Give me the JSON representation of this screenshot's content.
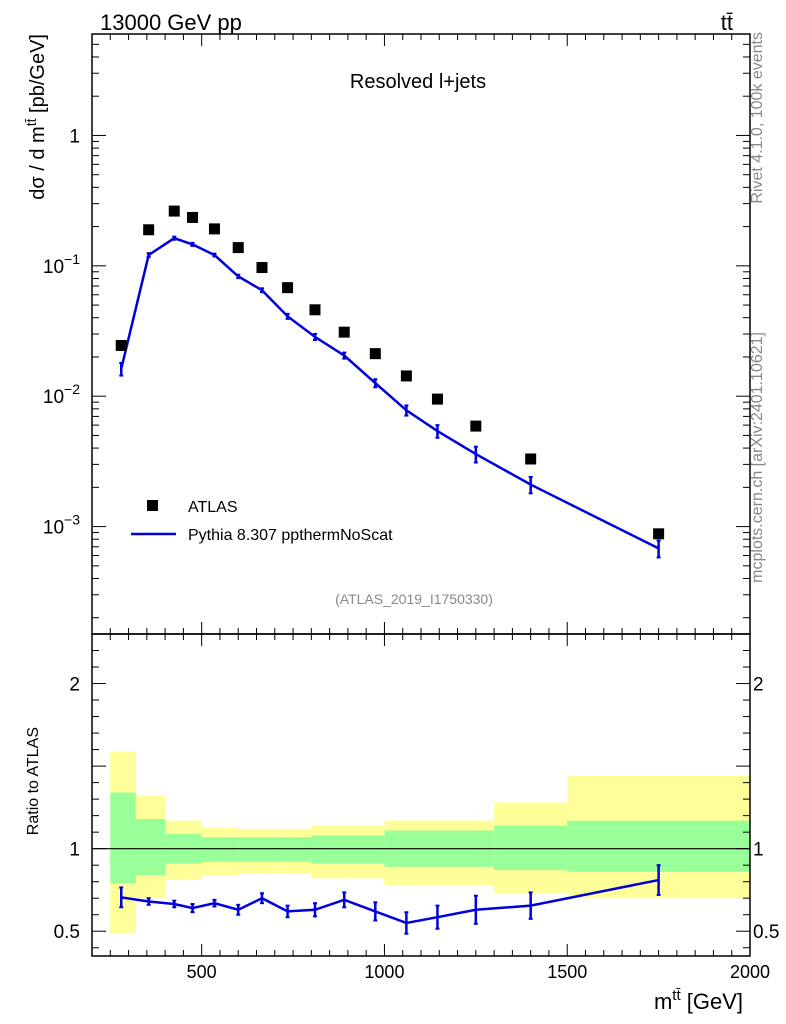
{
  "header": {
    "energy_label": "13000 GeV pp",
    "process_label": "tt̄"
  },
  "side_labels": {
    "rivet": "Rivet 4.1.0,  100k events",
    "source": "mcplots.cern.ch [arXiv:2401.10621]"
  },
  "colors": {
    "data": "#000000",
    "mc": "#0000dd",
    "band_inner": "#99ff99",
    "band_outer": "#ffff99"
  },
  "chart_data": [
    {
      "type": "scatter",
      "title": "Resolved l+jets",
      "analysis_id": "(ATLAS_2019_I1750330)",
      "xlabel": "",
      "ylabel": "dσ / d mtt̄ [pb/GeV]",
      "ylabel_parts": {
        "before": "dσ / d m",
        "sup": "tt̄",
        "after": " [pb/GeV]"
      },
      "xlim": [
        200,
        2000
      ],
      "ylim": [
        0.00015,
        6
      ],
      "yscale": "log",
      "ytick_labels": [
        {
          "value": 0.001,
          "base": "10",
          "exp": "−3"
        },
        {
          "value": 0.01,
          "base": "10",
          "exp": "−2"
        },
        {
          "value": 0.1,
          "base": "10",
          "exp": "−1"
        },
        {
          "value": 1,
          "base": "1",
          "exp": ""
        }
      ],
      "legend": {
        "placement": "bottom-left",
        "entries": [
          "ATLAS",
          "Pythia 8.307 ppthermNoScat"
        ]
      },
      "series": [
        {
          "name": "ATLAS",
          "style": "markers",
          "x": [
            280,
            355,
            425,
            475,
            535,
            600,
            665,
            735,
            810,
            890,
            975,
            1060,
            1145,
            1250,
            1400,
            1750
          ],
          "y": [
            0.0245,
            0.189,
            0.263,
            0.235,
            0.192,
            0.138,
            0.097,
            0.068,
            0.046,
            0.031,
            0.0212,
            0.0143,
            0.0095,
            0.0059,
            0.0033,
            0.00088
          ]
        },
        {
          "name": "Pythia 8.307 ppthermNoScat",
          "style": "line",
          "x": [
            280,
            355,
            425,
            475,
            535,
            600,
            665,
            735,
            810,
            890,
            975,
            1060,
            1145,
            1250,
            1400,
            1750
          ],
          "y": [
            0.0162,
            0.121,
            0.163,
            0.146,
            0.121,
            0.083,
            0.065,
            0.041,
            0.0285,
            0.0205,
            0.0126,
            0.0078,
            0.0054,
            0.0036,
            0.0021,
            0.00068
          ],
          "yerr": [
            0.0018,
            0.004,
            0.0045,
            0.004,
            0.003,
            0.0025,
            0.0022,
            0.0018,
            0.0015,
            0.0011,
            0.0009,
            0.0007,
            0.0006,
            0.0005,
            0.0003,
            0.0001
          ]
        }
      ]
    },
    {
      "type": "scatter",
      "title": "",
      "xlabel": "mtt̄ [GeV]",
      "xlabel_parts": {
        "before": "m",
        "sup": "tt̄",
        "after": " [GeV]"
      },
      "ylabel": "Ratio to ATLAS",
      "xlim": [
        200,
        2000
      ],
      "ylim": [
        0.35,
        2.3
      ],
      "xticks": [
        500,
        1000,
        1500,
        2000
      ],
      "yticks": [
        0.5,
        1,
        2
      ],
      "reference_line": 1,
      "bands": {
        "edges": [
          250,
          320,
          400,
          500,
          600,
          700,
          800,
          1000,
          1300,
          1500,
          2000
        ],
        "inner_low": [
          0.79,
          0.84,
          0.91,
          0.92,
          0.92,
          0.92,
          0.91,
          0.89,
          0.87,
          0.86
        ],
        "inner_high": [
          1.34,
          1.18,
          1.09,
          1.07,
          1.07,
          1.07,
          1.08,
          1.11,
          1.14,
          1.17
        ],
        "outer_low": [
          0.49,
          0.7,
          0.81,
          0.84,
          0.85,
          0.85,
          0.82,
          0.78,
          0.73,
          0.7
        ],
        "outer_high": [
          1.59,
          1.32,
          1.17,
          1.13,
          1.12,
          1.12,
          1.14,
          1.17,
          1.28,
          1.44
        ]
      },
      "series": [
        {
          "name": "Pythia 8.307 ppthermNoScat",
          "x": [
            280,
            355,
            425,
            475,
            535,
            600,
            665,
            735,
            810,
            890,
            975,
            1060,
            1145,
            1250,
            1400,
            1750
          ],
          "y": [
            0.705,
            0.68,
            0.665,
            0.64,
            0.67,
            0.63,
            0.7,
            0.62,
            0.63,
            0.69,
            0.62,
            0.55,
            0.585,
            0.63,
            0.655,
            0.81
          ],
          "yerr": [
            0.06,
            0.02,
            0.02,
            0.025,
            0.02,
            0.03,
            0.03,
            0.035,
            0.04,
            0.045,
            0.055,
            0.065,
            0.07,
            0.085,
            0.08,
            0.09
          ]
        }
      ]
    }
  ]
}
